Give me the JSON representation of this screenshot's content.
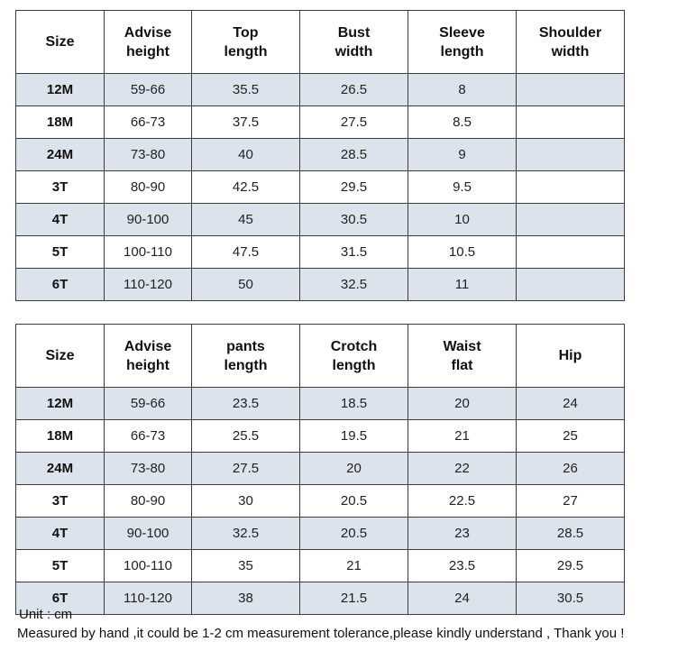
{
  "tables": [
    {
      "headers": [
        [
          "Size"
        ],
        [
          "Advise",
          "height"
        ],
        [
          "Top",
          "length"
        ],
        [
          "Bust",
          "width"
        ],
        [
          "Sleeve",
          "length"
        ],
        [
          "Shoulder",
          "width"
        ]
      ],
      "rows": [
        [
          "12M",
          "59-66",
          "35.5",
          "26.5",
          "8",
          ""
        ],
        [
          "18M",
          "66-73",
          "37.5",
          "27.5",
          "8.5",
          ""
        ],
        [
          "24M",
          "73-80",
          "40",
          "28.5",
          "9",
          ""
        ],
        [
          "3T",
          "80-90",
          "42.5",
          "29.5",
          "9.5",
          ""
        ],
        [
          "4T",
          "90-100",
          "45",
          "30.5",
          "10",
          ""
        ],
        [
          "5T",
          "100-110",
          "47.5",
          "31.5",
          "10.5",
          ""
        ],
        [
          "6T",
          "110-120",
          "50",
          "32.5",
          "11",
          ""
        ]
      ]
    },
    {
      "headers": [
        [
          "Size"
        ],
        [
          "Advise",
          "height"
        ],
        [
          "pants",
          "length"
        ],
        [
          "Crotch",
          "length"
        ],
        [
          "Waist",
          "flat"
        ],
        [
          "Hip"
        ]
      ],
      "rows": [
        [
          "12M",
          "59-66",
          "23.5",
          "18.5",
          "20",
          "24"
        ],
        [
          "18M",
          "66-73",
          "25.5",
          "19.5",
          "21",
          "25"
        ],
        [
          "24M",
          "73-80",
          "27.5",
          "20",
          "22",
          "26"
        ],
        [
          "3T",
          "80-90",
          "30",
          "20.5",
          "22.5",
          "27"
        ],
        [
          "4T",
          "90-100",
          "32.5",
          "20.5",
          "23",
          "28.5"
        ],
        [
          "5T",
          "100-110",
          "35",
          "21",
          "23.5",
          "29.5"
        ],
        [
          "6T",
          "110-120",
          "38",
          "21.5",
          "24",
          "30.5"
        ]
      ]
    }
  ],
  "footer": {
    "unit": "Unit : cm",
    "note": "Measured by hand ,it could be 1-2 cm measurement tolerance,please kindly understand , Thank you !"
  },
  "colors": {
    "shaded_row": "#dce3ec",
    "plain_row": "#ffffff",
    "border": "#3c3c3c"
  }
}
